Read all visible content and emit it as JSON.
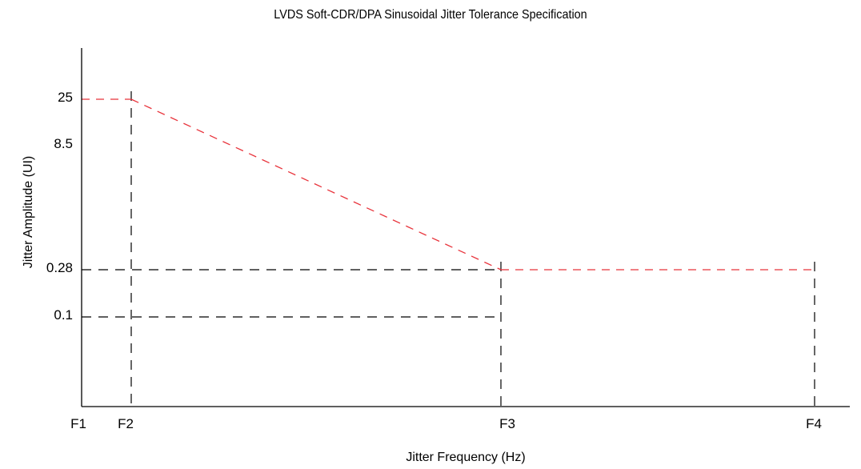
{
  "chart_data": {
    "type": "line",
    "title": "LVDS Soft-CDR/DPA Sinusoidal Jitter Tolerance Specification",
    "xlabel": "Jitter Frequency (Hz)",
    "ylabel": "Jitter Amplitude (UI)",
    "x_ticks": [
      "F1",
      "F2",
      "F3",
      "F4"
    ],
    "y_ticks": [
      "25",
      "8.5",
      "0.28",
      "0.1"
    ],
    "series": [
      {
        "color": "#e8333b",
        "points": [
          {
            "x": "F1",
            "y": 25
          },
          {
            "x": "F2",
            "y": 25
          },
          {
            "x": "F3",
            "y": 0.28
          },
          {
            "x": "F4",
            "y": 0.28
          }
        ]
      }
    ],
    "reference_lines": [
      {
        "orientation": "horizontal",
        "y": 0.28,
        "from": "F1",
        "to": "F3"
      },
      {
        "orientation": "horizontal",
        "y": 0.1,
        "from": "F1",
        "to": "F3"
      },
      {
        "orientation": "vertical",
        "x": "F2"
      },
      {
        "orientation": "vertical",
        "x": "F3"
      },
      {
        "orientation": "vertical",
        "x": "F4"
      }
    ],
    "colors": {
      "series": "#e8333b",
      "reference": "#000000",
      "axis": "#000000"
    },
    "grid": false,
    "legend": "none"
  }
}
